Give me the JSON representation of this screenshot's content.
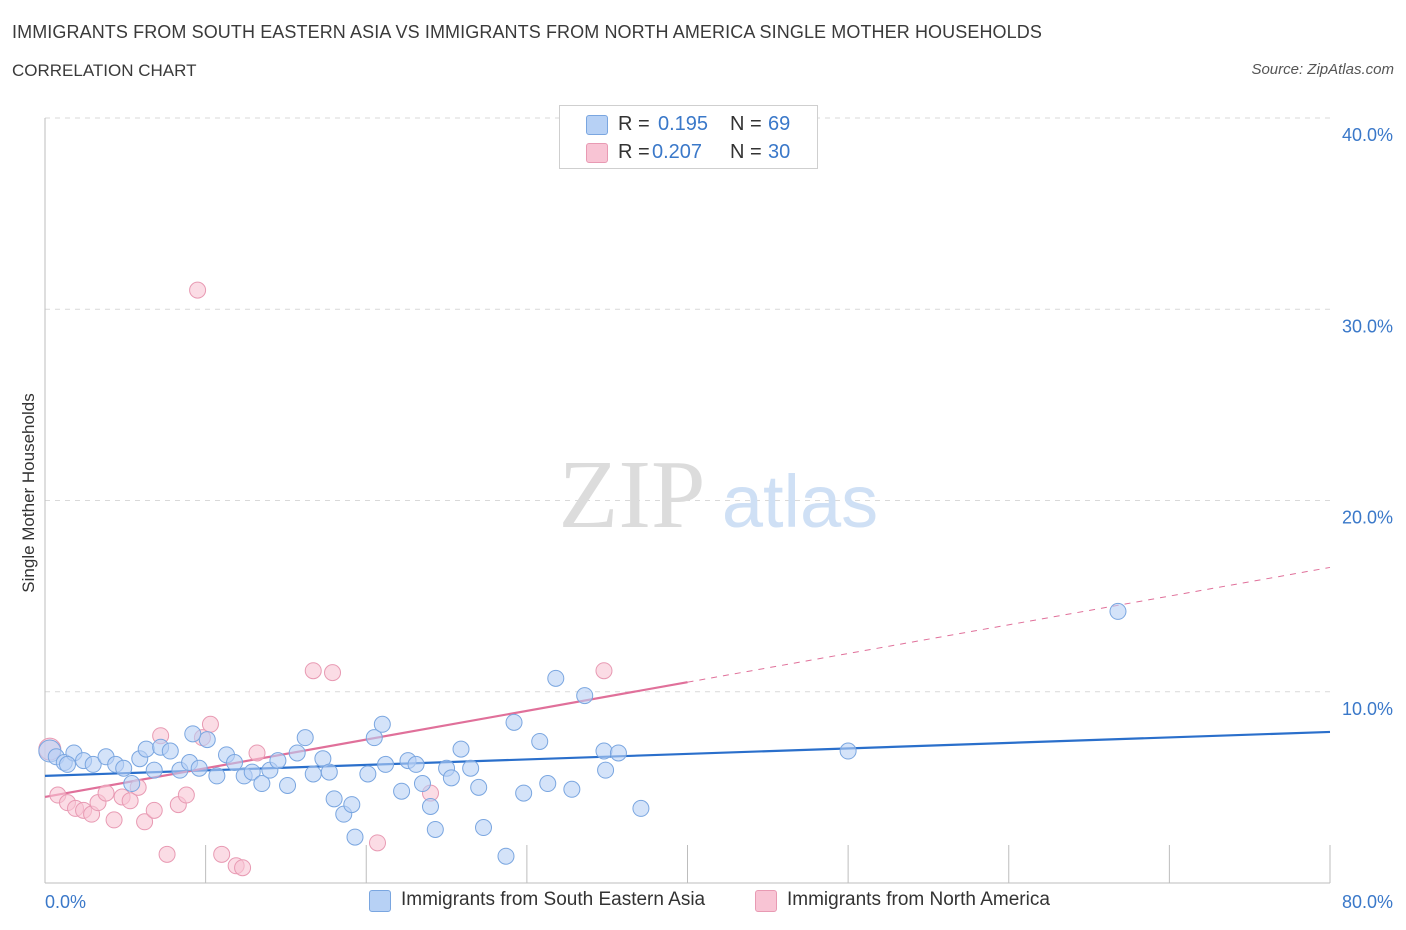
{
  "header": {
    "title": "IMMIGRANTS FROM SOUTH EASTERN ASIA VS IMMIGRANTS FROM NORTH AMERICA SINGLE MOTHER HOUSEHOLDS",
    "subtitle": "CORRELATION CHART",
    "source": "Source: ZipAtlas.com"
  },
  "watermark": {
    "zip": "ZIP",
    "atlas": "atlas"
  },
  "legend": {
    "r_label": "R =",
    "n_label": "N =",
    "rows": [
      {
        "r": "0.195",
        "n": "69"
      },
      {
        "r": "0.207",
        "n": "30"
      }
    ]
  },
  "colors": {
    "blue_fill": "#b7d1f5",
    "blue_stroke": "#7aa6e0",
    "blue_line": "#2a6fcb",
    "pink_fill": "#f8c4d4",
    "pink_stroke": "#e89ab3",
    "pink_line": "#e0709a",
    "tick_label": "#3a78c9",
    "grid": "#d9d9d9"
  },
  "chart_data": {
    "type": "scatter",
    "title": "IMMIGRANTS FROM SOUTH EASTERN ASIA VS IMMIGRANTS FROM NORTH AMERICA SINGLE MOTHER HOUSEHOLDS",
    "subtitle": "CORRELATION CHART",
    "xlabel": "",
    "ylabel": "Single Mother Households",
    "xlim": [
      0,
      80
    ],
    "ylim": [
      0,
      40
    ],
    "x_tick_labels": [
      "0.0%",
      "80.0%"
    ],
    "y_ticks": [
      10,
      20,
      30,
      40
    ],
    "y_tick_labels": [
      "10.0%",
      "20.0%",
      "30.0%",
      "40.0%"
    ],
    "grid": true,
    "legend_position": "top-center",
    "series": [
      {
        "name": "Immigrants from South Eastern Asia",
        "color": "#b7d1f5",
        "trend": {
          "x": [
            0,
            80
          ],
          "y": [
            5.6,
            7.9
          ],
          "dashed_from": null
        },
        "points": [
          [
            0.3,
            6.9
          ],
          [
            0.7,
            6.6
          ],
          [
            1.2,
            6.3
          ],
          [
            1.8,
            6.8
          ],
          [
            2.4,
            6.4
          ],
          [
            3.0,
            6.2
          ],
          [
            3.8,
            6.6
          ],
          [
            4.4,
            6.2
          ],
          [
            4.9,
            6.0
          ],
          [
            5.4,
            5.2
          ],
          [
            5.9,
            6.5
          ],
          [
            6.3,
            7.0
          ],
          [
            6.8,
            5.9
          ],
          [
            7.2,
            7.1
          ],
          [
            7.8,
            6.9
          ],
          [
            8.4,
            5.9
          ],
          [
            9.0,
            6.3
          ],
          [
            9.6,
            6.0
          ],
          [
            10.1,
            7.5
          ],
          [
            10.7,
            5.6
          ],
          [
            11.3,
            6.7
          ],
          [
            11.8,
            6.3
          ],
          [
            12.4,
            5.6
          ],
          [
            12.9,
            5.8
          ],
          [
            13.5,
            5.2
          ],
          [
            14.0,
            5.9
          ],
          [
            14.5,
            6.4
          ],
          [
            15.1,
            5.1
          ],
          [
            15.7,
            6.8
          ],
          [
            16.2,
            7.6
          ],
          [
            16.7,
            5.7
          ],
          [
            17.3,
            6.5
          ],
          [
            17.7,
            5.8
          ],
          [
            18.0,
            4.4
          ],
          [
            18.6,
            3.6
          ],
          [
            19.1,
            4.1
          ],
          [
            19.3,
            2.4
          ],
          [
            20.1,
            5.7
          ],
          [
            20.5,
            7.6
          ],
          [
            21.0,
            8.3
          ],
          [
            21.2,
            6.2
          ],
          [
            22.2,
            4.8
          ],
          [
            22.6,
            6.4
          ],
          [
            23.1,
            6.2
          ],
          [
            23.5,
            5.2
          ],
          [
            24.0,
            4.0
          ],
          [
            24.3,
            2.8
          ],
          [
            25.0,
            6.0
          ],
          [
            25.3,
            5.5
          ],
          [
            25.9,
            7.0
          ],
          [
            26.5,
            6.0
          ],
          [
            27.0,
            5.0
          ],
          [
            27.3,
            2.9
          ],
          [
            28.7,
            1.4
          ],
          [
            29.2,
            8.4
          ],
          [
            29.8,
            4.7
          ],
          [
            30.8,
            7.4
          ],
          [
            31.3,
            5.2
          ],
          [
            31.8,
            10.7
          ],
          [
            32.8,
            4.9
          ],
          [
            33.6,
            9.8
          ],
          [
            34.8,
            6.9
          ],
          [
            34.9,
            5.9
          ],
          [
            35.7,
            6.8
          ],
          [
            37.1,
            3.9
          ],
          [
            50.0,
            6.9
          ],
          [
            66.8,
            14.2
          ],
          [
            1.4,
            6.2
          ],
          [
            9.2,
            7.8
          ]
        ]
      },
      {
        "name": "Immigrants from North America",
        "color": "#f8c4d4",
        "trend": {
          "x": [
            0,
            80
          ],
          "y": [
            4.5,
            16.5
          ],
          "dashed_from": 40
        },
        "points": [
          [
            0.3,
            7.0
          ],
          [
            0.8,
            4.6
          ],
          [
            1.4,
            4.2
          ],
          [
            1.9,
            3.9
          ],
          [
            2.4,
            3.8
          ],
          [
            2.9,
            3.6
          ],
          [
            3.3,
            4.2
          ],
          [
            3.8,
            4.7
          ],
          [
            4.3,
            3.3
          ],
          [
            4.8,
            4.5
          ],
          [
            5.3,
            4.3
          ],
          [
            5.8,
            5.0
          ],
          [
            6.2,
            3.2
          ],
          [
            6.8,
            3.8
          ],
          [
            7.2,
            7.7
          ],
          [
            7.6,
            1.5
          ],
          [
            8.3,
            4.1
          ],
          [
            8.8,
            4.6
          ],
          [
            9.5,
            31.0
          ],
          [
            9.8,
            7.6
          ],
          [
            10.3,
            8.3
          ],
          [
            11.0,
            1.5
          ],
          [
            11.9,
            0.9
          ],
          [
            12.3,
            0.8
          ],
          [
            13.2,
            6.8
          ],
          [
            16.7,
            11.1
          ],
          [
            17.9,
            11.0
          ],
          [
            20.7,
            2.1
          ],
          [
            24.0,
            4.7
          ],
          [
            34.8,
            11.1
          ]
        ]
      }
    ]
  },
  "bottom_legend": [
    {
      "label": "Immigrants from South Eastern Asia"
    },
    {
      "label": "Immigrants from North America"
    }
  ],
  "axis": {
    "ylabel": "Single Mother Households",
    "x_min_label": "0.0%",
    "x_max_label": "80.0%",
    "y_labels": [
      "10.0%",
      "20.0%",
      "30.0%",
      "40.0%"
    ]
  }
}
